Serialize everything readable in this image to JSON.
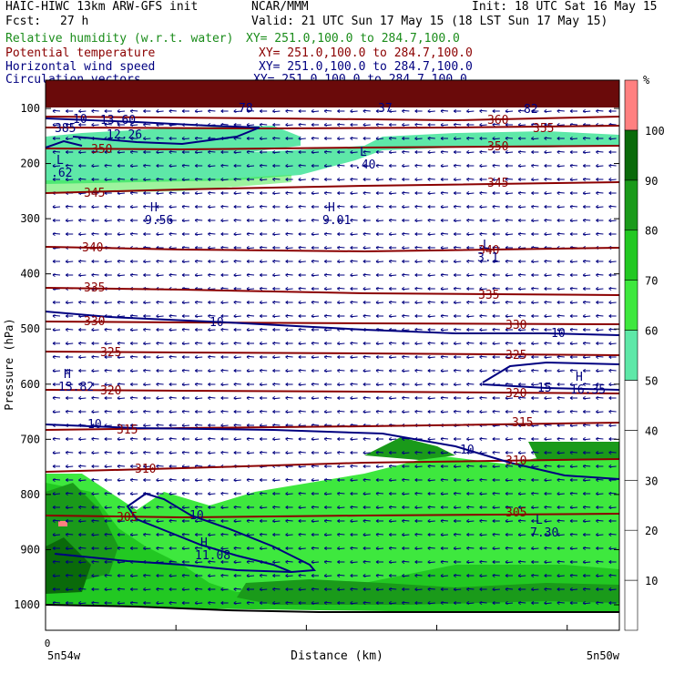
{
  "header": {
    "model": "HAIC-HIWC 13km ARW-GFS init",
    "org": "NCAR/MMM",
    "init": "Init: 18 UTC Sat 16 May 15",
    "fcst_label": "Fcst:",
    "fcst_value": "27 h",
    "valid": "Valid: 21 UTC Sun 17 May 15 (18 LST Sun 17 May 15)",
    "fields": [
      {
        "name": "Relative humidity (w.r.t. water)",
        "xy": "XY= 251.0,100.0 to 284.7,100.0",
        "color": "#1a8c1a"
      },
      {
        "name": "Potential temperature",
        "xy": "XY= 251.0,100.0 to 284.7,100.0",
        "color": "#8b0000"
      },
      {
        "name": "Horizontal wind speed",
        "xy": "XY= 251.0,100.0 to 284.7,100.0",
        "color": "#000080"
      },
      {
        "name": "Circulation vectors",
        "xy": "XY= 251.0,100.0 to 284.7,100.0",
        "color": "#000080"
      }
    ]
  },
  "chart_data": {
    "type": "heatmap",
    "ylabel": "Pressure (hPa)",
    "xlabel": "Distance (km)",
    "x_left_label": "5n54w",
    "x_right_label": "5n50w",
    "x_origin_label": "0",
    "y_ticks": [
      100,
      200,
      300,
      400,
      500,
      600,
      700,
      800,
      900,
      1000
    ],
    "ylim": [
      1050,
      50
    ],
    "colorbar": {
      "unit": "%",
      "levels": [
        10,
        20,
        30,
        40,
        50,
        60,
        70,
        80,
        90,
        100
      ],
      "colors": [
        "#ffffff",
        "#ffffff",
        "#ffffff",
        "#ffffff",
        "#ffffff",
        "#5ee8a8",
        "#3ee83e",
        "#22c822",
        "#1a9a1a",
        "#0a6a0a",
        "#ff8080"
      ]
    },
    "theta_contours": [
      {
        "level": 360,
        "color": "#8b0000"
      },
      {
        "level": 355,
        "color": "#8b0000"
      },
      {
        "level": 350,
        "color": "#8b0000"
      },
      {
        "level": 345,
        "color": "#8b0000"
      },
      {
        "level": 340,
        "color": "#8b0000"
      },
      {
        "level": 335,
        "color": "#8b0000"
      },
      {
        "level": 330,
        "color": "#8b0000"
      },
      {
        "level": 325,
        "color": "#8b0000"
      },
      {
        "level": 320,
        "color": "#8b0000"
      },
      {
        "level": 315,
        "color": "#8b0000"
      },
      {
        "level": 310,
        "color": "#8b0000"
      },
      {
        "level": 305,
        "color": "#8b0000"
      }
    ],
    "wind_labels": [
      "10",
      "10",
      "10",
      "10",
      "10",
      "15"
    ],
    "extrema": [
      {
        "type": "H",
        "value": "9.56"
      },
      {
        "type": "H",
        "value": "9.01"
      },
      {
        "type": "H",
        "value": "13.82"
      },
      {
        "type": "H",
        "value": "16.35"
      },
      {
        "type": "H",
        "value": "11.08"
      },
      {
        "type": "L",
        "value": ".62"
      },
      {
        "type": "L",
        "value": ".40"
      },
      {
        "type": "L",
        "value": "3.1"
      },
      {
        "type": "L",
        "value": "7.30"
      }
    ],
    "misc_labels": [
      "10",
      "13.60",
      "12.26",
      "385",
      "78",
      "37",
      "82"
    ]
  }
}
